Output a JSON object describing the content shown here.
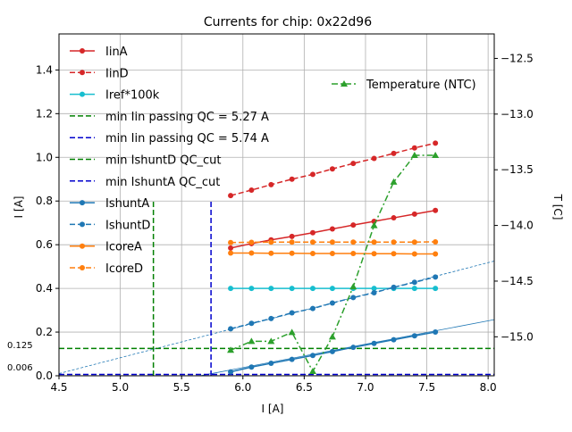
{
  "chart_data": {
    "type": "line",
    "title": "Currents for chip: 0x22d96",
    "xlabel": "I [A]",
    "ylabel": "I [A]",
    "y2label": "T [C]",
    "xlim": [
      4.5,
      8.05
    ],
    "ylim": [
      0.0,
      1.565
    ],
    "y2lim": [
      -15.35,
      -12.28
    ],
    "xticks": [
      "4.5",
      "5.0",
      "5.5",
      "6.0",
      "6.5",
      "7.0",
      "7.5",
      "8.0"
    ],
    "xtick_values": [
      4.5,
      5.0,
      5.5,
      6.0,
      6.5,
      7.0,
      7.5,
      8.0
    ],
    "yticks": [
      "0.0",
      "0.2",
      "0.4",
      "0.6",
      "0.8",
      "1.0",
      "1.2",
      "1.4"
    ],
    "ytick_values": [
      0.0,
      0.2,
      0.4,
      0.6,
      0.8,
      1.0,
      1.2,
      1.4
    ],
    "y2ticks": [
      "−15.0",
      "−14.5",
      "−14.0",
      "−13.5",
      "−13.0",
      "−12.5"
    ],
    "y2tick_values": [
      -15.0,
      -14.5,
      -14.0,
      -13.5,
      -13.0,
      -12.5
    ],
    "grid": true,
    "x": [
      5.9,
      6.07,
      6.23,
      6.4,
      6.57,
      6.73,
      6.9,
      7.07,
      7.23,
      7.4,
      7.57
    ],
    "series": [
      {
        "name": "IinA",
        "color": "#d62728",
        "style": "solid",
        "marker": "circle",
        "values": [
          0.585,
          0.605,
          0.622,
          0.638,
          0.655,
          0.672,
          0.69,
          0.707,
          0.723,
          0.74,
          0.757
        ]
      },
      {
        "name": "IinD",
        "color": "#d62728",
        "style": "dashed",
        "marker": "circle",
        "values": [
          0.825,
          0.85,
          0.875,
          0.9,
          0.922,
          0.947,
          0.972,
          0.995,
          1.018,
          1.043,
          1.065
        ]
      },
      {
        "name": "Iref*100k",
        "color": "#17becf",
        "style": "solid",
        "marker": "circle",
        "values": [
          0.4,
          0.4,
          0.4,
          0.4,
          0.4,
          0.4,
          0.4,
          0.4,
          0.4,
          0.4,
          0.4
        ]
      },
      {
        "name": "IshuntA",
        "color": "#1f77b4",
        "style": "solid",
        "marker": "circle",
        "values": [
          0.018,
          0.04,
          0.057,
          0.075,
          0.093,
          0.111,
          0.13,
          0.148,
          0.165,
          0.183,
          0.2
        ]
      },
      {
        "name": "IshuntD",
        "color": "#1f77b4",
        "style": "dashed",
        "marker": "circle",
        "values": [
          0.215,
          0.24,
          0.262,
          0.288,
          0.308,
          0.333,
          0.358,
          0.38,
          0.405,
          0.428,
          0.452
        ]
      },
      {
        "name": "IcoreA",
        "color": "#ff7f0e",
        "style": "solid",
        "marker": "circle",
        "values": [
          0.562,
          0.562,
          0.561,
          0.561,
          0.56,
          0.56,
          0.56,
          0.559,
          0.559,
          0.558,
          0.558
        ]
      },
      {
        "name": "IcoreD",
        "color": "#ff7f0e",
        "style": "dashed",
        "marker": "circle",
        "values": [
          0.61,
          0.611,
          0.612,
          0.612,
          0.612,
          0.612,
          0.612,
          0.612,
          0.612,
          0.612,
          0.613
        ]
      }
    ],
    "temperature": {
      "name": "Temperature (NTC)",
      "color": "#2ca02c",
      "style": "dashdot",
      "marker": "triangle",
      "values": [
        -15.12,
        -15.04,
        -15.04,
        -14.96,
        -15.31,
        -15.0,
        -14.55,
        -14.0,
        -13.61,
        -13.37,
        -13.37
      ]
    },
    "vlines": [
      {
        "name": "min Iin passing QC = 5.27 A",
        "x": 5.27,
        "ymax": 0.8,
        "color": "#008000"
      },
      {
        "name": "min Iin passing QC = 5.74 A",
        "x": 5.74,
        "ymax": 0.8,
        "color": "#0000cd"
      }
    ],
    "hlines": [
      {
        "name": "min IshuntD QC_cut",
        "y": 0.125,
        "label": "0.125",
        "color": "#008000"
      },
      {
        "name": "min IshuntA QC_cut",
        "y": 0.006,
        "label": "0.006",
        "color": "#0000cd"
      }
    ],
    "fit_lines": [
      {
        "name": "IshuntD-fit",
        "x": [
          4.5,
          8.05
        ],
        "y": [
          0.01,
          0.525
        ],
        "color": "#1f77b4"
      },
      {
        "name": "IshuntA-fit",
        "x": [
          5.65,
          8.05
        ],
        "y": [
          0.0,
          0.257
        ],
        "color": "#1f77b4"
      }
    ],
    "legend_main": {
      "position": "top-left",
      "entries": [
        {
          "label": "IinA",
          "color": "#d62728",
          "style": "solid",
          "marker": true
        },
        {
          "label": "IinD",
          "color": "#d62728",
          "style": "dashed",
          "marker": true
        },
        {
          "label": "Iref*100k",
          "color": "#17becf",
          "style": "solid",
          "marker": true
        },
        {
          "label": "min Iin passing QC = 5.27 A",
          "color": "#008000",
          "style": "dashed",
          "marker": false
        },
        {
          "label": "min Iin passing QC = 5.74 A",
          "color": "#0000cd",
          "style": "dashed",
          "marker": false
        },
        {
          "label": "min IshuntD QC_cut",
          "color": "#008000",
          "style": "dashed",
          "marker": false
        },
        {
          "label": "min IshuntA QC_cut",
          "color": "#0000cd",
          "style": "dashed",
          "marker": false
        },
        {
          "label": "IshuntA",
          "color": "#1f77b4",
          "style": "solid",
          "marker": true
        },
        {
          "label": "IshuntD",
          "color": "#1f77b4",
          "style": "dashed",
          "marker": true
        },
        {
          "label": "IcoreA",
          "color": "#ff7f0e",
          "style": "solid",
          "marker": true
        },
        {
          "label": "IcoreD",
          "color": "#ff7f0e",
          "style": "dashed",
          "marker": true
        }
      ]
    },
    "legend_temp": {
      "position": "top-right",
      "label": "Temperature (NTC)"
    }
  }
}
